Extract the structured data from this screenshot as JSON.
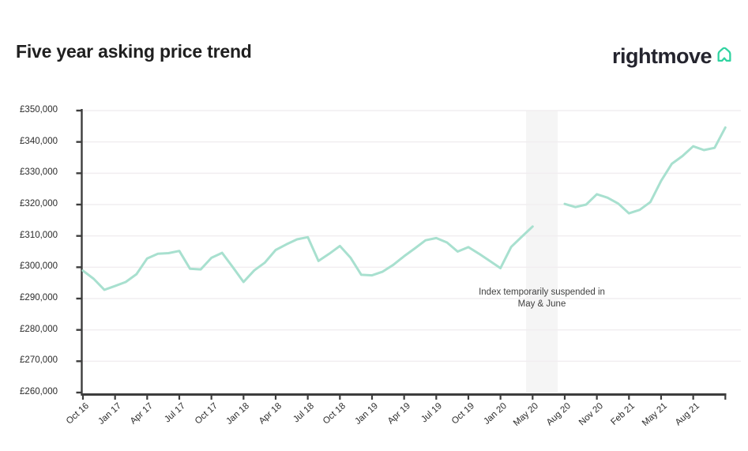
{
  "header": {
    "title": "Five year asking price trend",
    "brand": "rightmove",
    "brand_icon": "rightmove-house-icon"
  },
  "annotation": {
    "line1": "Index temporarily suspended in",
    "line2": "May & June"
  },
  "colors": {
    "line": "#a8e0cf",
    "grid": "#f1eef0",
    "band": "#f5f5f5",
    "axis": "#3d3d3d",
    "label_text": "#2b2b2b",
    "title_text": "#1f1f1f",
    "brand_green": "#2fd3a0",
    "brand_dark": "#24242e"
  },
  "chart_data": {
    "type": "line",
    "title": "Five year asking price trend",
    "xlabel": "",
    "ylabel": "",
    "ylim": [
      260000,
      350000
    ],
    "y_tick_step": 10000,
    "grid": "horizontal",
    "legend": "none",
    "currency": "GBP",
    "y_tick_labels": [
      "£350,000",
      "£340,000",
      "£330,000",
      "£320,000",
      "£310,000",
      "£300,000",
      "£290,000",
      "£280,000",
      "£270,000",
      "£260,000"
    ],
    "x_tick_labels": [
      "Oct 16",
      "Jan 17",
      "Apr 17",
      "Jul 17",
      "Oct 17",
      "Jan 18",
      "Apr 18",
      "Jul 18",
      "Oct 18",
      "Jan 19",
      "Apr 19",
      "Jul 19",
      "Oct 19",
      "Jan 20",
      "May 20",
      "Aug 20",
      "Nov 20",
      "Feb 21",
      "May 21",
      "Aug 21"
    ],
    "suspended_months": [
      "May 20",
      "Jun 20"
    ],
    "months": [
      "Oct 16",
      "Nov 16",
      "Dec 16",
      "Jan 17",
      "Feb 17",
      "Mar 17",
      "Apr 17",
      "May 17",
      "Jun 17",
      "Jul 17",
      "Aug 17",
      "Sep 17",
      "Oct 17",
      "Nov 17",
      "Dec 17",
      "Jan 18",
      "Feb 18",
      "Mar 18",
      "Apr 18",
      "May 18",
      "Jun 18",
      "Jul 18",
      "Aug 18",
      "Sep 18",
      "Oct 18",
      "Nov 18",
      "Dec 18",
      "Jan 19",
      "Feb 19",
      "Mar 19",
      "Apr 19",
      "May 19",
      "Jun 19",
      "Jul 19",
      "Aug 19",
      "Sep 19",
      "Oct 19",
      "Nov 19",
      "Dec 19",
      "Jan 20",
      "Feb 20",
      "Mar 20",
      "Apr 20",
      "May 20",
      "Jun 20",
      "Jul 20",
      "Aug 20",
      "Sep 20",
      "Oct 20",
      "Nov 20",
      "Dec 20",
      "Jan 21",
      "Feb 21",
      "Mar 21",
      "Apr 21",
      "May 21",
      "Jun 21",
      "Jul 21",
      "Aug 21",
      "Sep 21",
      "Oct 21"
    ],
    "values": [
      298900,
      296300,
      292800,
      294000,
      295300,
      297800,
      302800,
      304300,
      304500,
      305200,
      299500,
      299300,
      303000,
      304600,
      300000,
      295300,
      299000,
      301500,
      305500,
      307300,
      308900,
      309600,
      302000,
      304300,
      306800,
      303000,
      297600,
      297400,
      298600,
      300800,
      303500,
      306000,
      308600,
      309300,
      307900,
      305000,
      306400,
      304300,
      302000,
      299700,
      306500,
      309800,
      313000,
      null,
      null,
      320200,
      319200,
      320000,
      323300,
      322200,
      320300,
      317200,
      318300,
      320800,
      327600,
      333000,
      335500,
      338600,
      337400,
      338100,
      344600
    ]
  }
}
